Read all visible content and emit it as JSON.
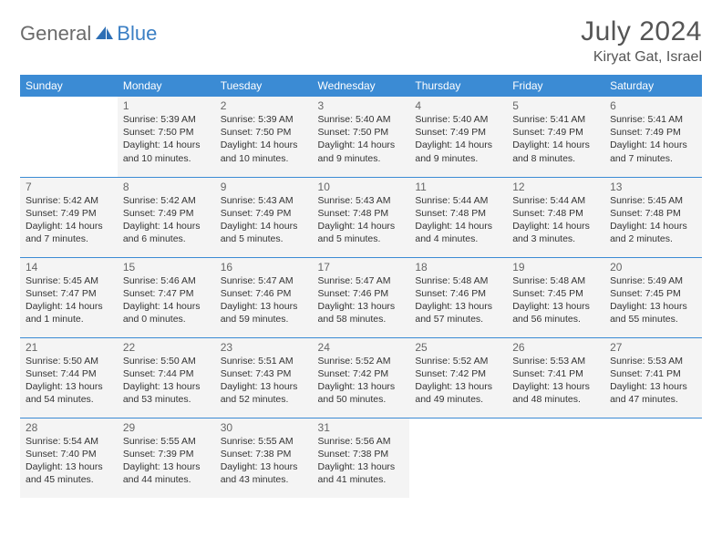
{
  "logo": {
    "text1": "General",
    "text2": "Blue"
  },
  "title": "July 2024",
  "location": "Kiryat Gat, Israel",
  "colors": {
    "header_bg": "#3b8bd4",
    "header_text": "#ffffff",
    "cell_bg": "#f4f4f4",
    "border": "#3b8bd4",
    "logo_gray": "#6b6b6b",
    "logo_blue": "#3b7fc4",
    "title_color": "#555555"
  },
  "weekdays": [
    "Sunday",
    "Monday",
    "Tuesday",
    "Wednesday",
    "Thursday",
    "Friday",
    "Saturday"
  ],
  "weeks": [
    [
      null,
      {
        "n": "1",
        "sr": "5:39 AM",
        "ss": "7:50 PM",
        "dl": "14 hours and 10 minutes."
      },
      {
        "n": "2",
        "sr": "5:39 AM",
        "ss": "7:50 PM",
        "dl": "14 hours and 10 minutes."
      },
      {
        "n": "3",
        "sr": "5:40 AM",
        "ss": "7:50 PM",
        "dl": "14 hours and 9 minutes."
      },
      {
        "n": "4",
        "sr": "5:40 AM",
        "ss": "7:49 PM",
        "dl": "14 hours and 9 minutes."
      },
      {
        "n": "5",
        "sr": "5:41 AM",
        "ss": "7:49 PM",
        "dl": "14 hours and 8 minutes."
      },
      {
        "n": "6",
        "sr": "5:41 AM",
        "ss": "7:49 PM",
        "dl": "14 hours and 7 minutes."
      }
    ],
    [
      {
        "n": "7",
        "sr": "5:42 AM",
        "ss": "7:49 PM",
        "dl": "14 hours and 7 minutes."
      },
      {
        "n": "8",
        "sr": "5:42 AM",
        "ss": "7:49 PM",
        "dl": "14 hours and 6 minutes."
      },
      {
        "n": "9",
        "sr": "5:43 AM",
        "ss": "7:49 PM",
        "dl": "14 hours and 5 minutes."
      },
      {
        "n": "10",
        "sr": "5:43 AM",
        "ss": "7:48 PM",
        "dl": "14 hours and 5 minutes."
      },
      {
        "n": "11",
        "sr": "5:44 AM",
        "ss": "7:48 PM",
        "dl": "14 hours and 4 minutes."
      },
      {
        "n": "12",
        "sr": "5:44 AM",
        "ss": "7:48 PM",
        "dl": "14 hours and 3 minutes."
      },
      {
        "n": "13",
        "sr": "5:45 AM",
        "ss": "7:48 PM",
        "dl": "14 hours and 2 minutes."
      }
    ],
    [
      {
        "n": "14",
        "sr": "5:45 AM",
        "ss": "7:47 PM",
        "dl": "14 hours and 1 minute."
      },
      {
        "n": "15",
        "sr": "5:46 AM",
        "ss": "7:47 PM",
        "dl": "14 hours and 0 minutes."
      },
      {
        "n": "16",
        "sr": "5:47 AM",
        "ss": "7:46 PM",
        "dl": "13 hours and 59 minutes."
      },
      {
        "n": "17",
        "sr": "5:47 AM",
        "ss": "7:46 PM",
        "dl": "13 hours and 58 minutes."
      },
      {
        "n": "18",
        "sr": "5:48 AM",
        "ss": "7:46 PM",
        "dl": "13 hours and 57 minutes."
      },
      {
        "n": "19",
        "sr": "5:48 AM",
        "ss": "7:45 PM",
        "dl": "13 hours and 56 minutes."
      },
      {
        "n": "20",
        "sr": "5:49 AM",
        "ss": "7:45 PM",
        "dl": "13 hours and 55 minutes."
      }
    ],
    [
      {
        "n": "21",
        "sr": "5:50 AM",
        "ss": "7:44 PM",
        "dl": "13 hours and 54 minutes."
      },
      {
        "n": "22",
        "sr": "5:50 AM",
        "ss": "7:44 PM",
        "dl": "13 hours and 53 minutes."
      },
      {
        "n": "23",
        "sr": "5:51 AM",
        "ss": "7:43 PM",
        "dl": "13 hours and 52 minutes."
      },
      {
        "n": "24",
        "sr": "5:52 AM",
        "ss": "7:42 PM",
        "dl": "13 hours and 50 minutes."
      },
      {
        "n": "25",
        "sr": "5:52 AM",
        "ss": "7:42 PM",
        "dl": "13 hours and 49 minutes."
      },
      {
        "n": "26",
        "sr": "5:53 AM",
        "ss": "7:41 PM",
        "dl": "13 hours and 48 minutes."
      },
      {
        "n": "27",
        "sr": "5:53 AM",
        "ss": "7:41 PM",
        "dl": "13 hours and 47 minutes."
      }
    ],
    [
      {
        "n": "28",
        "sr": "5:54 AM",
        "ss": "7:40 PM",
        "dl": "13 hours and 45 minutes."
      },
      {
        "n": "29",
        "sr": "5:55 AM",
        "ss": "7:39 PM",
        "dl": "13 hours and 44 minutes."
      },
      {
        "n": "30",
        "sr": "5:55 AM",
        "ss": "7:38 PM",
        "dl": "13 hours and 43 minutes."
      },
      {
        "n": "31",
        "sr": "5:56 AM",
        "ss": "7:38 PM",
        "dl": "13 hours and 41 minutes."
      },
      null,
      null,
      null
    ]
  ],
  "labels": {
    "sunrise": "Sunrise:",
    "sunset": "Sunset:",
    "daylight": "Daylight:"
  }
}
